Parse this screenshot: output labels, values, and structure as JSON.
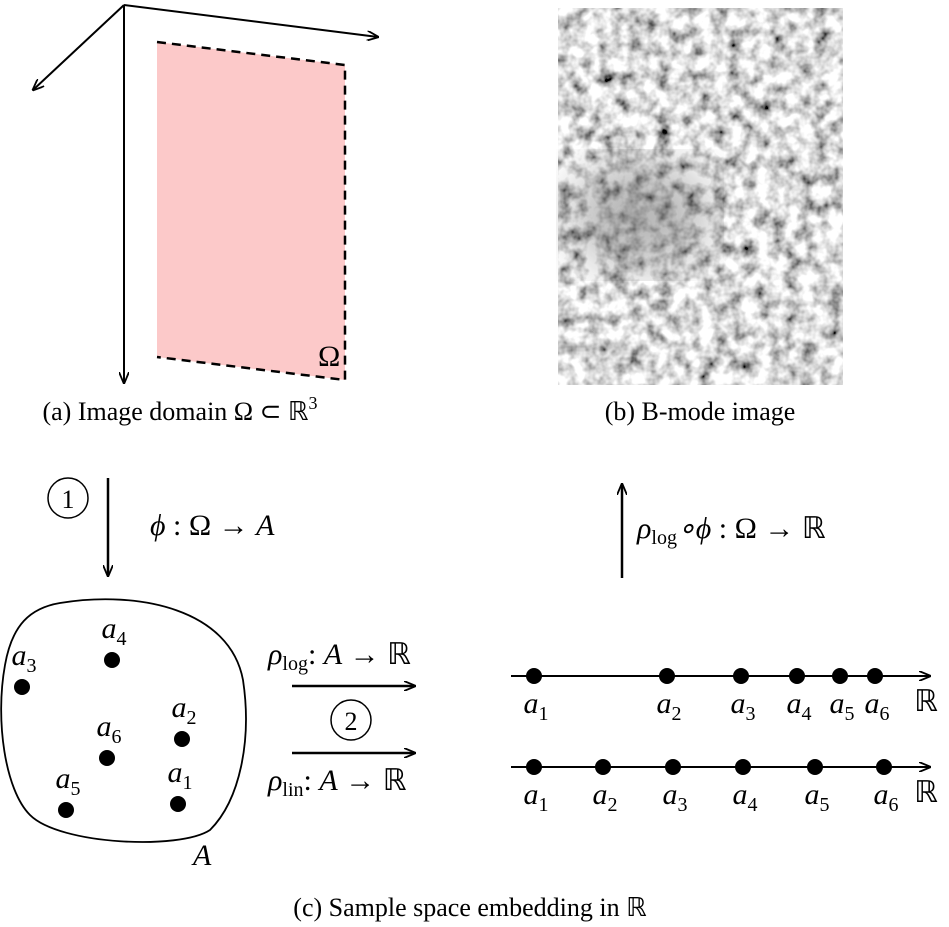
{
  "panel_a": {
    "caption": "(a) Image domain Ω ⊂ ℝ",
    "caption_sup": "3",
    "region_label": "Ω"
  },
  "panel_b": {
    "caption": "(b) B-mode image"
  },
  "step_1": {
    "marker": "1",
    "label_phi": "ϕ",
    "label_rest": " : Ω → ",
    "label_target": "A"
  },
  "step_b": {
    "rho": "ρ",
    "sub": "log",
    "phi": "∘ϕ",
    "rest": " : Ω → ℝ"
  },
  "step_2": {
    "marker": "2",
    "maps": [
      {
        "rho": "ρ",
        "sub": "log",
        "colon": ": ",
        "domain": "A",
        "rest": " → ℝ"
      },
      {
        "rho": "ρ",
        "sub": "lin",
        "colon": ": ",
        "domain": "A",
        "rest": " → ℝ"
      }
    ]
  },
  "sample_space": {
    "label": "A",
    "points": [
      {
        "base": "a",
        "sub": "1"
      },
      {
        "base": "a",
        "sub": "2"
      },
      {
        "base": "a",
        "sub": "3"
      },
      {
        "base": "a",
        "sub": "4"
      },
      {
        "base": "a",
        "sub": "5"
      },
      {
        "base": "a",
        "sub": "6"
      }
    ]
  },
  "embeddings": [
    {
      "axis_label": "ℝ",
      "points": [
        {
          "base": "a",
          "sub": "1"
        },
        {
          "base": "a",
          "sub": "2"
        },
        {
          "base": "a",
          "sub": "3"
        },
        {
          "base": "a",
          "sub": "4"
        },
        {
          "base": "a",
          "sub": "5"
        },
        {
          "base": "a",
          "sub": "6"
        }
      ]
    },
    {
      "axis_label": "ℝ",
      "points": [
        {
          "base": "a",
          "sub": "1"
        },
        {
          "base": "a",
          "sub": "2"
        },
        {
          "base": "a",
          "sub": "3"
        },
        {
          "base": "a",
          "sub": "4"
        },
        {
          "base": "a",
          "sub": "5"
        },
        {
          "base": "a",
          "sub": "6"
        }
      ]
    }
  ],
  "caption": "(c) Sample space embedding in ℝ"
}
